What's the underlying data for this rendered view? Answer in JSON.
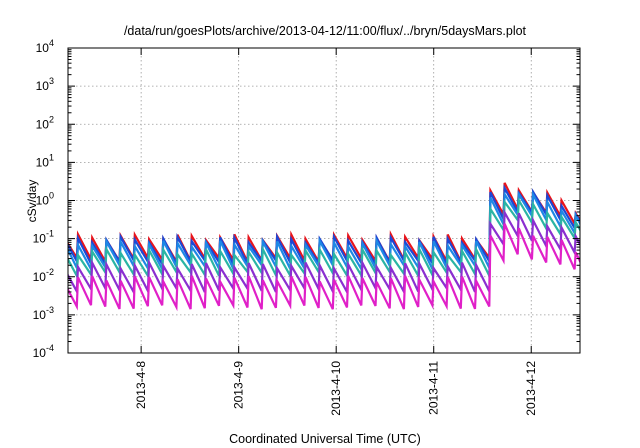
{
  "chart_data": {
    "type": "line",
    "title": "/data/run/goesPlots/archive/2013-04-12/11:00/flux/../bryn/5daysMars.plot",
    "xlabel": "Coordinated Universal Time (UTC)",
    "ylabel": "cSv/day",
    "yscale": "log",
    "ylim": [
      0.0001,
      10000
    ],
    "xlim": [
      "2013-04-07T06:00",
      "2013-04-12T12:00"
    ],
    "x_ticks": [
      {
        "label": "2013-4-8",
        "date": "2013-04-08T00:00"
      },
      {
        "label": "2013-4-9",
        "date": "2013-04-09T00:00"
      },
      {
        "label": "2013-4-10",
        "date": "2013-04-10T00:00"
      },
      {
        "label": "2013-4-11",
        "date": "2013-04-11T00:00"
      },
      {
        "label": "2013-4-12",
        "date": "2013-04-12T00:00"
      }
    ],
    "y_ticks": [
      {
        "base": "10",
        "exp": "-4"
      },
      {
        "base": "10",
        "exp": "-3"
      },
      {
        "base": "10",
        "exp": "-2"
      },
      {
        "base": "10",
        "exp": "-1"
      },
      {
        "base": "10",
        "exp": "0"
      },
      {
        "base": "10",
        "exp": "1"
      },
      {
        "base": "10",
        "exp": "2"
      },
      {
        "base": "10",
        "exp": "3"
      },
      {
        "base": "10",
        "exp": "4"
      }
    ],
    "grid": true,
    "legend": "none",
    "sawtooth": {
      "period_hours": 3.5,
      "jump_date": "2013-04-11T11:00",
      "pre_jump_peak_factor": 1.0,
      "post_jump_peak_factor_start": 6.0,
      "post_jump_peak_factor_max": 24.0,
      "post_jump_peak_date": "2013-04-11T17:00",
      "post_jump_peak_factor_end": 4.0
    },
    "series": [
      {
        "color": "#e8141b",
        "peak": 0.11,
        "trough": 0.028
      },
      {
        "color": "#1c48d6",
        "peak": 0.095,
        "trough": 0.024
      },
      {
        "color": "#1e88e5",
        "peak": 0.075,
        "trough": 0.018
      },
      {
        "color": "#2bb5a4",
        "peak": 0.045,
        "trough": 0.012
      },
      {
        "color": "#8b2fd0",
        "peak": 0.02,
        "trough": 0.0045
      },
      {
        "color": "#e020c8",
        "peak": 0.009,
        "trough": 0.0016
      }
    ]
  }
}
